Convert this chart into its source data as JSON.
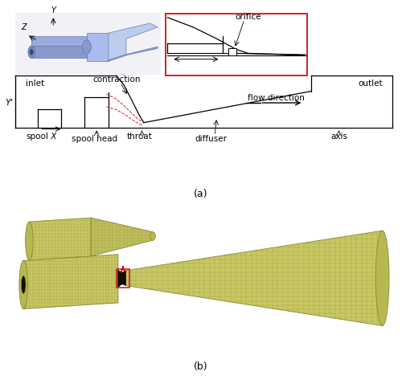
{
  "fig_width": 5.0,
  "fig_height": 4.83,
  "dpi": 100,
  "background_color": "#ffffff",
  "panel_a_label": "(a)",
  "panel_b_label": "(b)",
  "colors": {
    "black": "#000000",
    "red_box": "#cc2222",
    "red_arrow": "#cc0000",
    "dashed_red": "#cc2222",
    "valve_blue": "#8899cc",
    "valve_blue_dark": "#6677aa",
    "valve_blue_mid": "#7788bb",
    "mesh_face": "#c8c864",
    "mesh_face2": "#b8b850",
    "mesh_edge": "#888830",
    "mesh_dark": "#555520",
    "mesh_black": "#111100",
    "gray_line": "#888888",
    "light_gray": "#dddddd"
  },
  "labels": {
    "inlet": "inlet",
    "outlet": "outlet",
    "spool": "spool",
    "x_label": "X",
    "spool_head": "spool head",
    "throat": "throat",
    "diffuser": "diffuser",
    "axis": "axis",
    "contraction": "contraction",
    "flow_direction": "flow direction",
    "orifice": "orifice",
    "y_axis": "Y",
    "y_prime": "Y'",
    "z_axis": "Z"
  }
}
